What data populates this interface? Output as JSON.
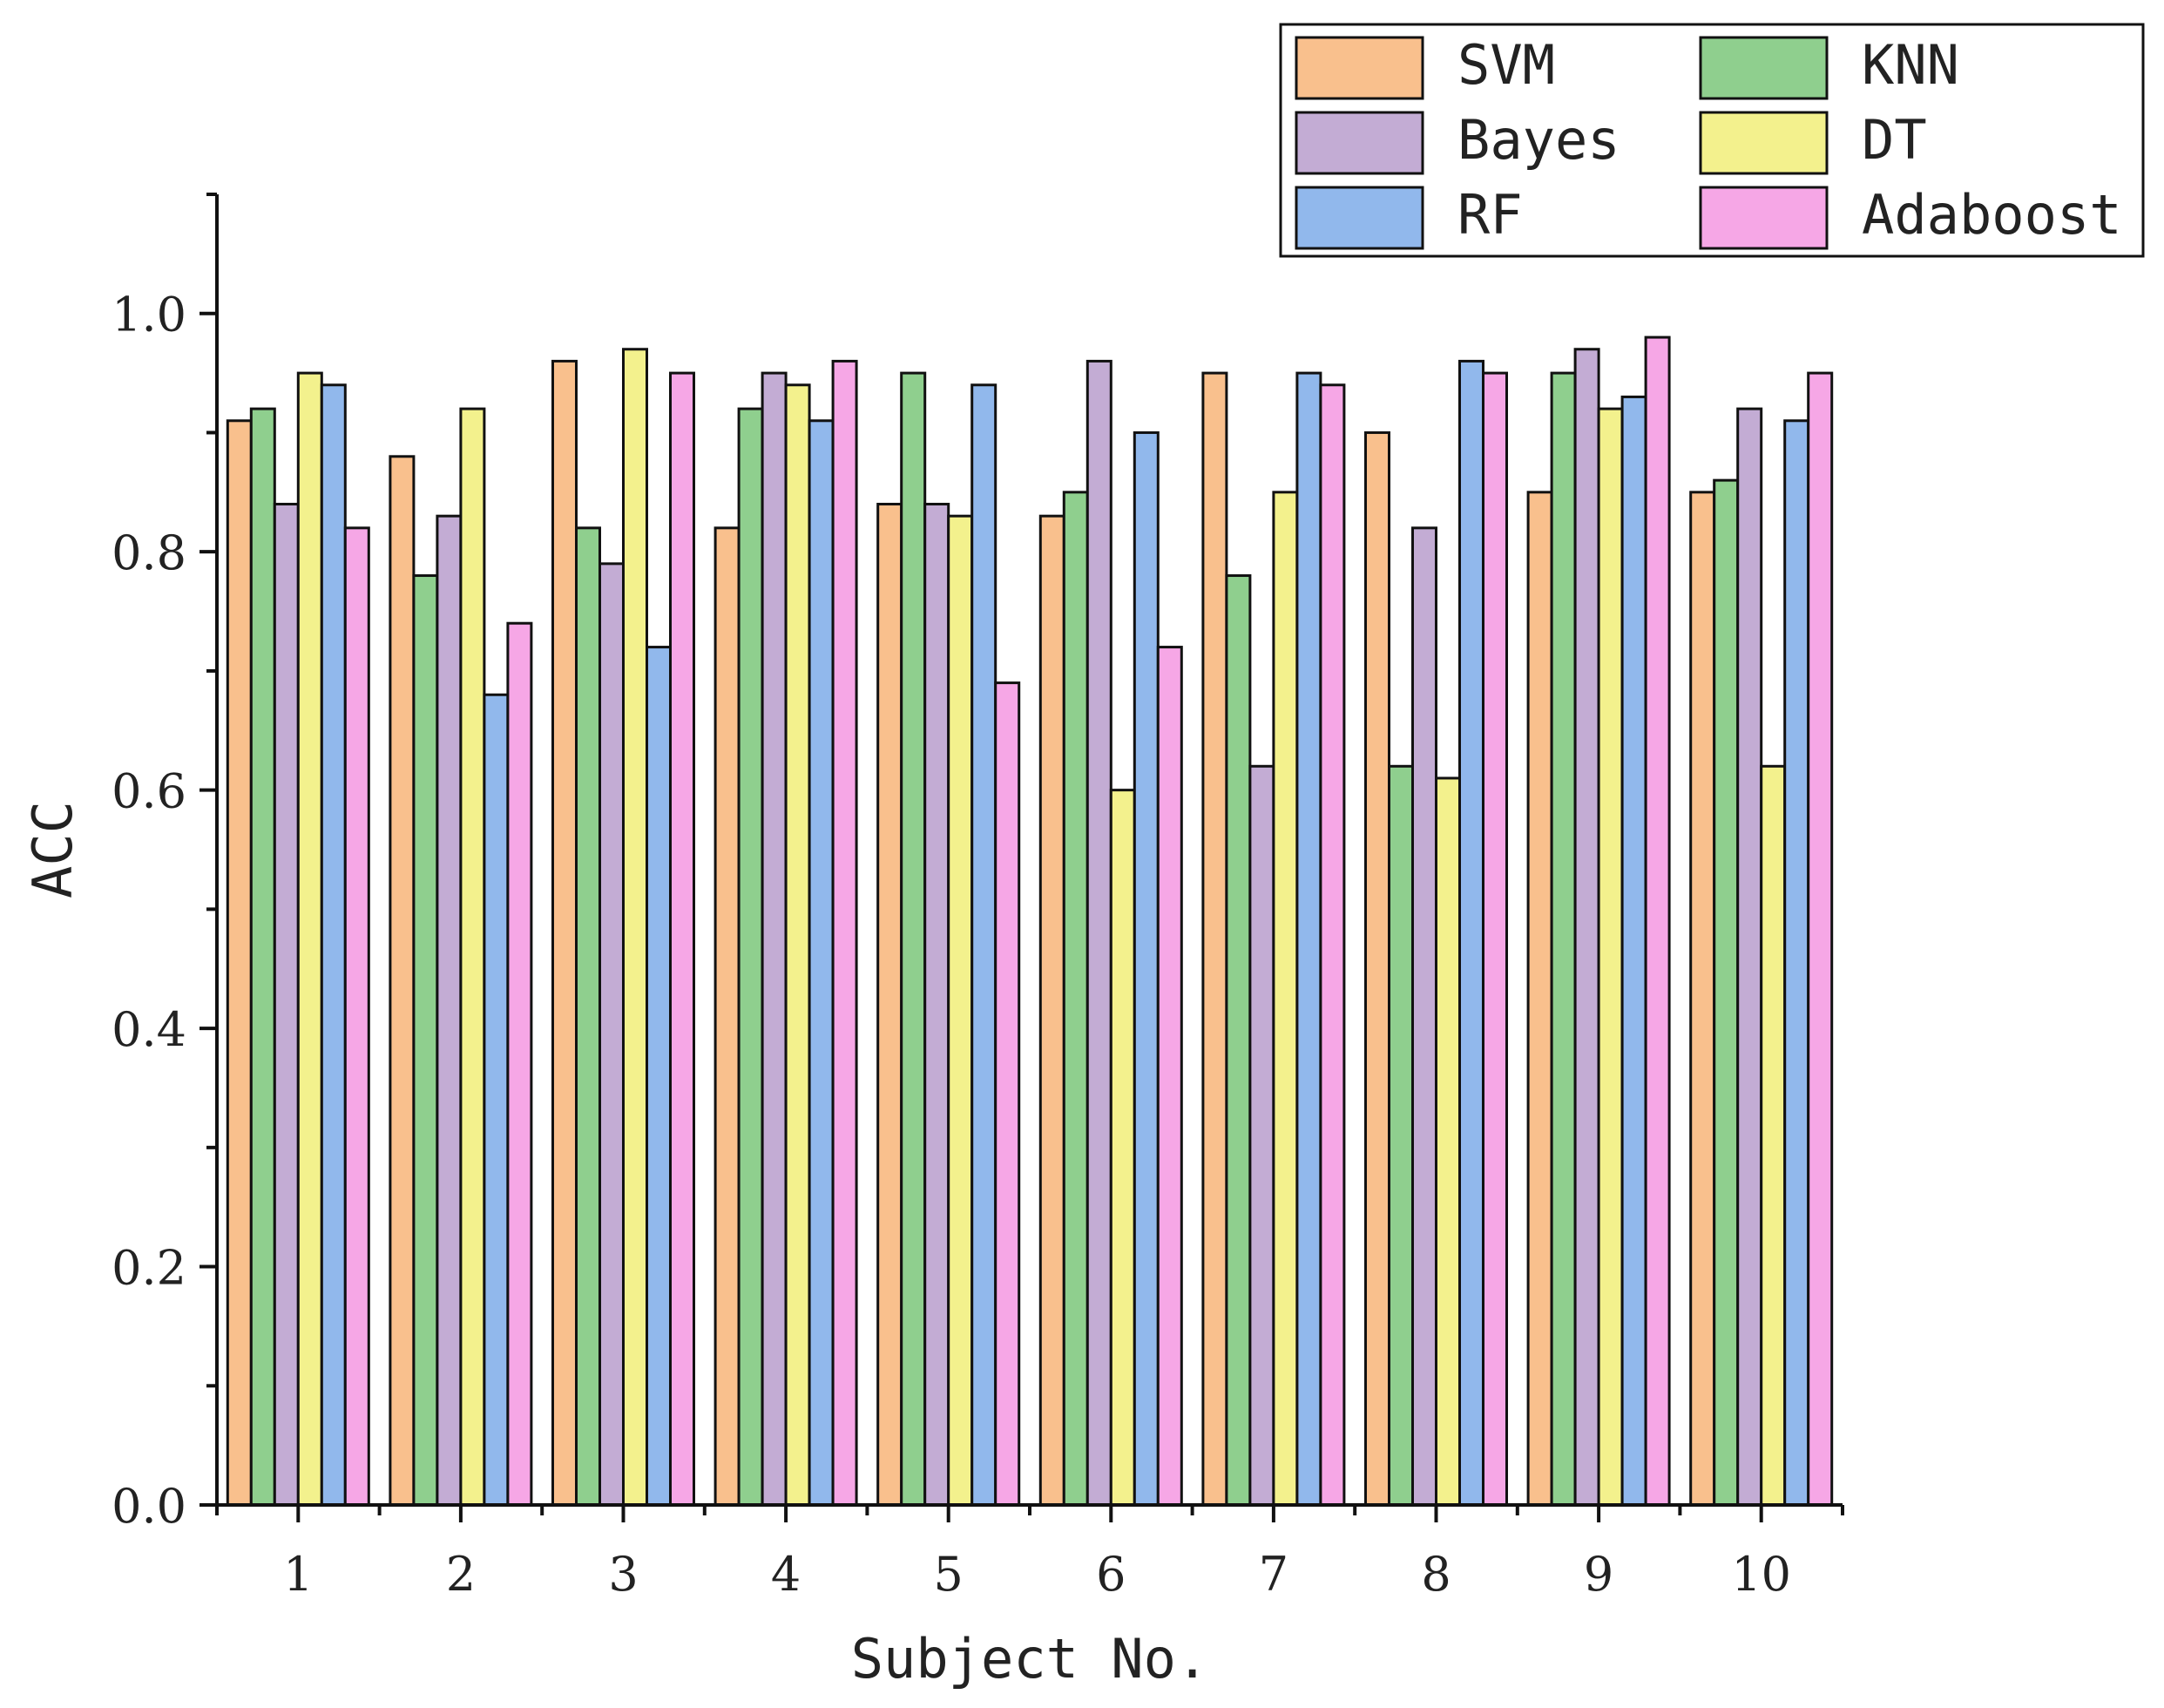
{
  "chart_data": {
    "type": "bar",
    "title": "",
    "xlabel": "Subject No.",
    "ylabel": "ACC",
    "ylim": [
      0,
      1.1
    ],
    "yticks": [
      "0.0",
      "0.2",
      "0.4",
      "0.6",
      "0.8",
      "1.0"
    ],
    "categories": [
      "1",
      "2",
      "3",
      "4",
      "5",
      "6",
      "7",
      "8",
      "9",
      "10"
    ],
    "legend_position": "top-right",
    "series": [
      {
        "name": "SVM",
        "color": "#F9C08D",
        "values": [
          0.91,
          0.88,
          0.96,
          0.82,
          0.84,
          0.83,
          0.95,
          0.9,
          0.85,
          0.85
        ]
      },
      {
        "name": "KNN",
        "color": "#8FCF8E",
        "values": [
          0.92,
          0.78,
          0.82,
          0.92,
          0.95,
          0.85,
          0.78,
          0.62,
          0.95,
          0.86
        ]
      },
      {
        "name": "Bayes",
        "color": "#C3ACD4",
        "values": [
          0.84,
          0.83,
          0.79,
          0.95,
          0.84,
          0.96,
          0.62,
          0.82,
          0.97,
          0.92
        ]
      },
      {
        "name": "DT",
        "color": "#F3F18D",
        "values": [
          0.95,
          0.92,
          0.97,
          0.94,
          0.83,
          0.6,
          0.85,
          0.61,
          0.92,
          0.62
        ]
      },
      {
        "name": "RF",
        "color": "#91B8EC",
        "values": [
          0.94,
          0.68,
          0.72,
          0.91,
          0.94,
          0.9,
          0.95,
          0.96,
          0.93,
          0.91
        ]
      },
      {
        "name": "Adaboost",
        "color": "#F6A7E6",
        "values": [
          0.82,
          0.74,
          0.95,
          0.96,
          0.69,
          0.72,
          0.94,
          0.95,
          0.98,
          0.95
        ]
      }
    ]
  }
}
